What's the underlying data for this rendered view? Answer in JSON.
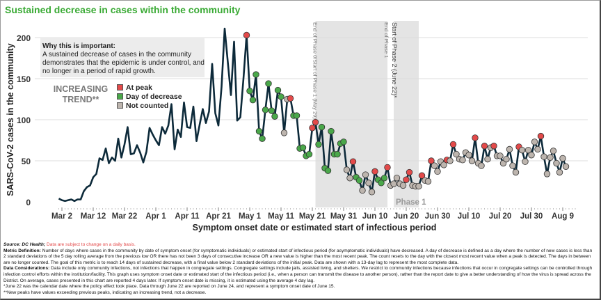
{
  "title": "Sustained decrease in cases within the community",
  "info_box": {
    "heading": "Why this is important:",
    "text": "A sustained decrease of cases in the community demonstrates that the epidemic is under control, and no longer in a period of rapid growth."
  },
  "trend_label": "INCREASING TREND**",
  "legend": [
    {
      "label": "At peak",
      "color": "#e34a4a"
    },
    {
      "label": "Day of decrease",
      "color": "#4aa84a"
    },
    {
      "label": "Not counted",
      "color": "#bdb5ae"
    }
  ],
  "chart_data": {
    "type": "line",
    "title": "Sustained decrease in cases within the community",
    "xlabel": "Symptom onset date or estimated start of infectious period",
    "ylabel": "SARS-CoV-2 cases in the community",
    "ylim": [
      0,
      200
    ],
    "yticks": [
      0,
      50,
      100,
      150,
      200
    ],
    "x_start_date": "Mar 1",
    "xticks": [
      {
        "day": 1,
        "label": "Mar 2"
      },
      {
        "day": 11,
        "label": "Mar 12"
      },
      {
        "day": 21,
        "label": "Mar 22"
      },
      {
        "day": 31,
        "label": "Apr 1"
      },
      {
        "day": 41,
        "label": "Apr 11"
      },
      {
        "day": 51,
        "label": "Apr 21"
      },
      {
        "day": 61,
        "label": "May 1"
      },
      {
        "day": 71,
        "label": "May 11"
      },
      {
        "day": 81,
        "label": "May 21"
      },
      {
        "day": 91,
        "label": "May 31"
      },
      {
        "day": 101,
        "label": "Jun 10"
      },
      {
        "day": 111,
        "label": "Jun 20"
      },
      {
        "day": 121,
        "label": "Jun 30"
      },
      {
        "day": 131,
        "label": "Jul 10"
      },
      {
        "day": 141,
        "label": "Jul 20"
      },
      {
        "day": 151,
        "label": "Jul 30"
      },
      {
        "day": 161,
        "label": "Aug 9"
      }
    ],
    "status_key": {
      "p": "At peak",
      "d": "Day of decrease",
      "n": "Not counted",
      "": "No marker"
    },
    "values": [
      4,
      2,
      1,
      2,
      3,
      1,
      3,
      3,
      13,
      18,
      20,
      30,
      34,
      53,
      51,
      65,
      47,
      54,
      50,
      77,
      54,
      70,
      91,
      58,
      59,
      69,
      60,
      48,
      61,
      90,
      82,
      75,
      69,
      91,
      83,
      93,
      119,
      64,
      88,
      79,
      121,
      91,
      90,
      116,
      74,
      94,
      113,
      96,
      110,
      168,
      108,
      93,
      140,
      211,
      170,
      130,
      195,
      99,
      103,
      150,
      203,
      135,
      124,
      155,
      86,
      77,
      112,
      144,
      111,
      104,
      136,
      128,
      84,
      125,
      126,
      105,
      105,
      65,
      66,
      56,
      58,
      90,
      97,
      70,
      91,
      41,
      38,
      86,
      58,
      58,
      71,
      73,
      39,
      29,
      49,
      30,
      26,
      14,
      33,
      23,
      12,
      37,
      27,
      23,
      29,
      42,
      20,
      22,
      29,
      22,
      20,
      27,
      36,
      20,
      19,
      19,
      32,
      26,
      25,
      50,
      44,
      37,
      49,
      45,
      51,
      50,
      70,
      58,
      52,
      51,
      60,
      57,
      50,
      78,
      47,
      44,
      68,
      52,
      66,
      68,
      56,
      56,
      47,
      52,
      64,
      44,
      36,
      67,
      63,
      49,
      63,
      57,
      73,
      64,
      80,
      55,
      34,
      54,
      62,
      47,
      36,
      53,
      43
    ],
    "status": "60:p,61:d,62:d,63:d,64:d,65:d,66:d,67:d,68:d,69:d,70:d,71:d,72:n,73:n,74:p,75:d,76:d,77:d,78:d,79:d,80:d,81:p,82:p,83:d,84:d,85:d,86:d,87:d,88:d,89:d,90:d,91:d,92:n,93:n,94:p,95:d,96:d,97:n,98:n,99:n,100:n,101:p,102:d,103:d,104:d,105:p,106:n,107:n,108:n,109:n,110:n,111:p,112:p,113:n,114:n,115:n,116:p,117:n,118:n,119:p,120:n,121:n,122:n,123:n,124:p,125:n,126:p,127:n,128:n,129:n,130:n,131:n,132:n,133:p,134:n,135:n,136:p,137:n,138:n,139:p,140:n,141:n,142:n,143:n,144:n,145:n,146:n,147:p,148:n,149:n,150:n,151:n,152:n,153:n,154:p,155:n,156:n,157:n,158:n,159:n,160:n,161:n,162:n",
    "shaded_periods": [
      {
        "from_day": 82,
        "to_day": 105,
        "label": "End of Phase 0/Start of Phase 1 (May 29)*"
      },
      {
        "from_day": 107,
        "to_day": 115,
        "label": "Start of Phase 2 (June 22)*"
      }
    ],
    "annotations": [
      "End of Phase 1",
      "Phase 1"
    ]
  },
  "footer": {
    "source_label": "Source: DC Health;",
    "source_note": "Data are subject to change on a daily basis.",
    "metric_label": "Metric Definition:",
    "metric_text": "Number of days where cases in the community by date of symptom onset (for symptomatic individuals) or estimated start of infectious period (for asymptomatic individuals) have decreased. A day of decrease is defined as a day where the number of new cases is less than 2 standard deviations of the 5 day rolling average from the previous low OR there has not been 3 days of consecutive increase OR a new value is higher than the most recent peak. The count resets to the day with the closest most recent value when a peak is detected. The days in between are no longer counted. The goal of this metric is to reach 14 days of sustained decrease, with a final value below 2 standard deviations of the initial peak. Data are shown with a 13-day lag to represent the most complete data.",
    "considerations_label": "Data Considerations:",
    "considerations_text": "Data include only community infections, not infections that happen in congregate settings. Congregate settings include jails, assisted living, and shelters. We restrict to community infections because infections that occur in congregate settings can be controlled through infection control efforts within the institution/facility. This graph uses symptom onset date or estimated start of the infectious period (i.e., when a person can transmit the disease to another person), rather than the report date to give a better understanding of how the virus is spread across the District. On average, cases presented in this chart are reported 4 days later. If symptom onset date is missing, it is estimated using the average 4 day lag.",
    "note1": "*June 22 was the calendar date where the policy effect took place. Data through June 22 are reported on June 24, and represent a symptom onset date of June 15.",
    "note2": "**New peaks have values exceeding previous peaks, indicating an increasing trend, not a decrease."
  },
  "colors": {
    "line": "#0d2a3a",
    "title": "#3aaa35",
    "shade": "#e4e4e4"
  }
}
